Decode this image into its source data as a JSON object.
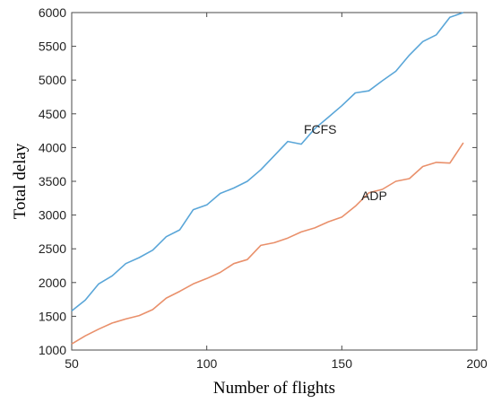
{
  "chart_data": {
    "type": "line",
    "xlabel": "Number of flights",
    "ylabel": "Total delay",
    "xlim": [
      50,
      200
    ],
    "ylim": [
      1000,
      6000
    ],
    "xticks": [
      50,
      100,
      150,
      200
    ],
    "yticks": [
      1000,
      1500,
      2000,
      2500,
      3000,
      3500,
      4000,
      4500,
      5000,
      5500,
      6000
    ],
    "grid": false,
    "legend": "none",
    "series": [
      {
        "name": "FCFS",
        "color": "#5aa6d8",
        "label_at": [
          142,
          4270
        ],
        "x": [
          50,
          55,
          60,
          65,
          70,
          75,
          80,
          85,
          90,
          95,
          100,
          105,
          110,
          115,
          120,
          125,
          130,
          135,
          140,
          145,
          150,
          155,
          160,
          165,
          170,
          175,
          180,
          185,
          190,
          195
        ],
        "y": [
          1580,
          1740,
          1980,
          2100,
          2280,
          2370,
          2480,
          2680,
          2780,
          3080,
          3150,
          3320,
          3400,
          3500,
          3670,
          3880,
          4090,
          4050,
          4280,
          4450,
          4620,
          4810,
          4840,
          4990,
          5130,
          5370,
          5570,
          5670,
          5930,
          6000
        ]
      },
      {
        "name": "ADP",
        "color": "#e9906b",
        "label_at": [
          162,
          3290
        ],
        "x": [
          50,
          55,
          60,
          65,
          70,
          75,
          80,
          85,
          90,
          95,
          100,
          105,
          110,
          115,
          120,
          125,
          130,
          135,
          140,
          145,
          150,
          155,
          160,
          165,
          170,
          175,
          180,
          185,
          190,
          195
        ],
        "y": [
          1090,
          1210,
          1310,
          1400,
          1460,
          1510,
          1600,
          1770,
          1870,
          1980,
          2060,
          2150,
          2280,
          2340,
          2550,
          2590,
          2660,
          2750,
          2810,
          2900,
          2970,
          3130,
          3330,
          3380,
          3500,
          3540,
          3720,
          3780,
          3770,
          4070
        ]
      }
    ]
  }
}
